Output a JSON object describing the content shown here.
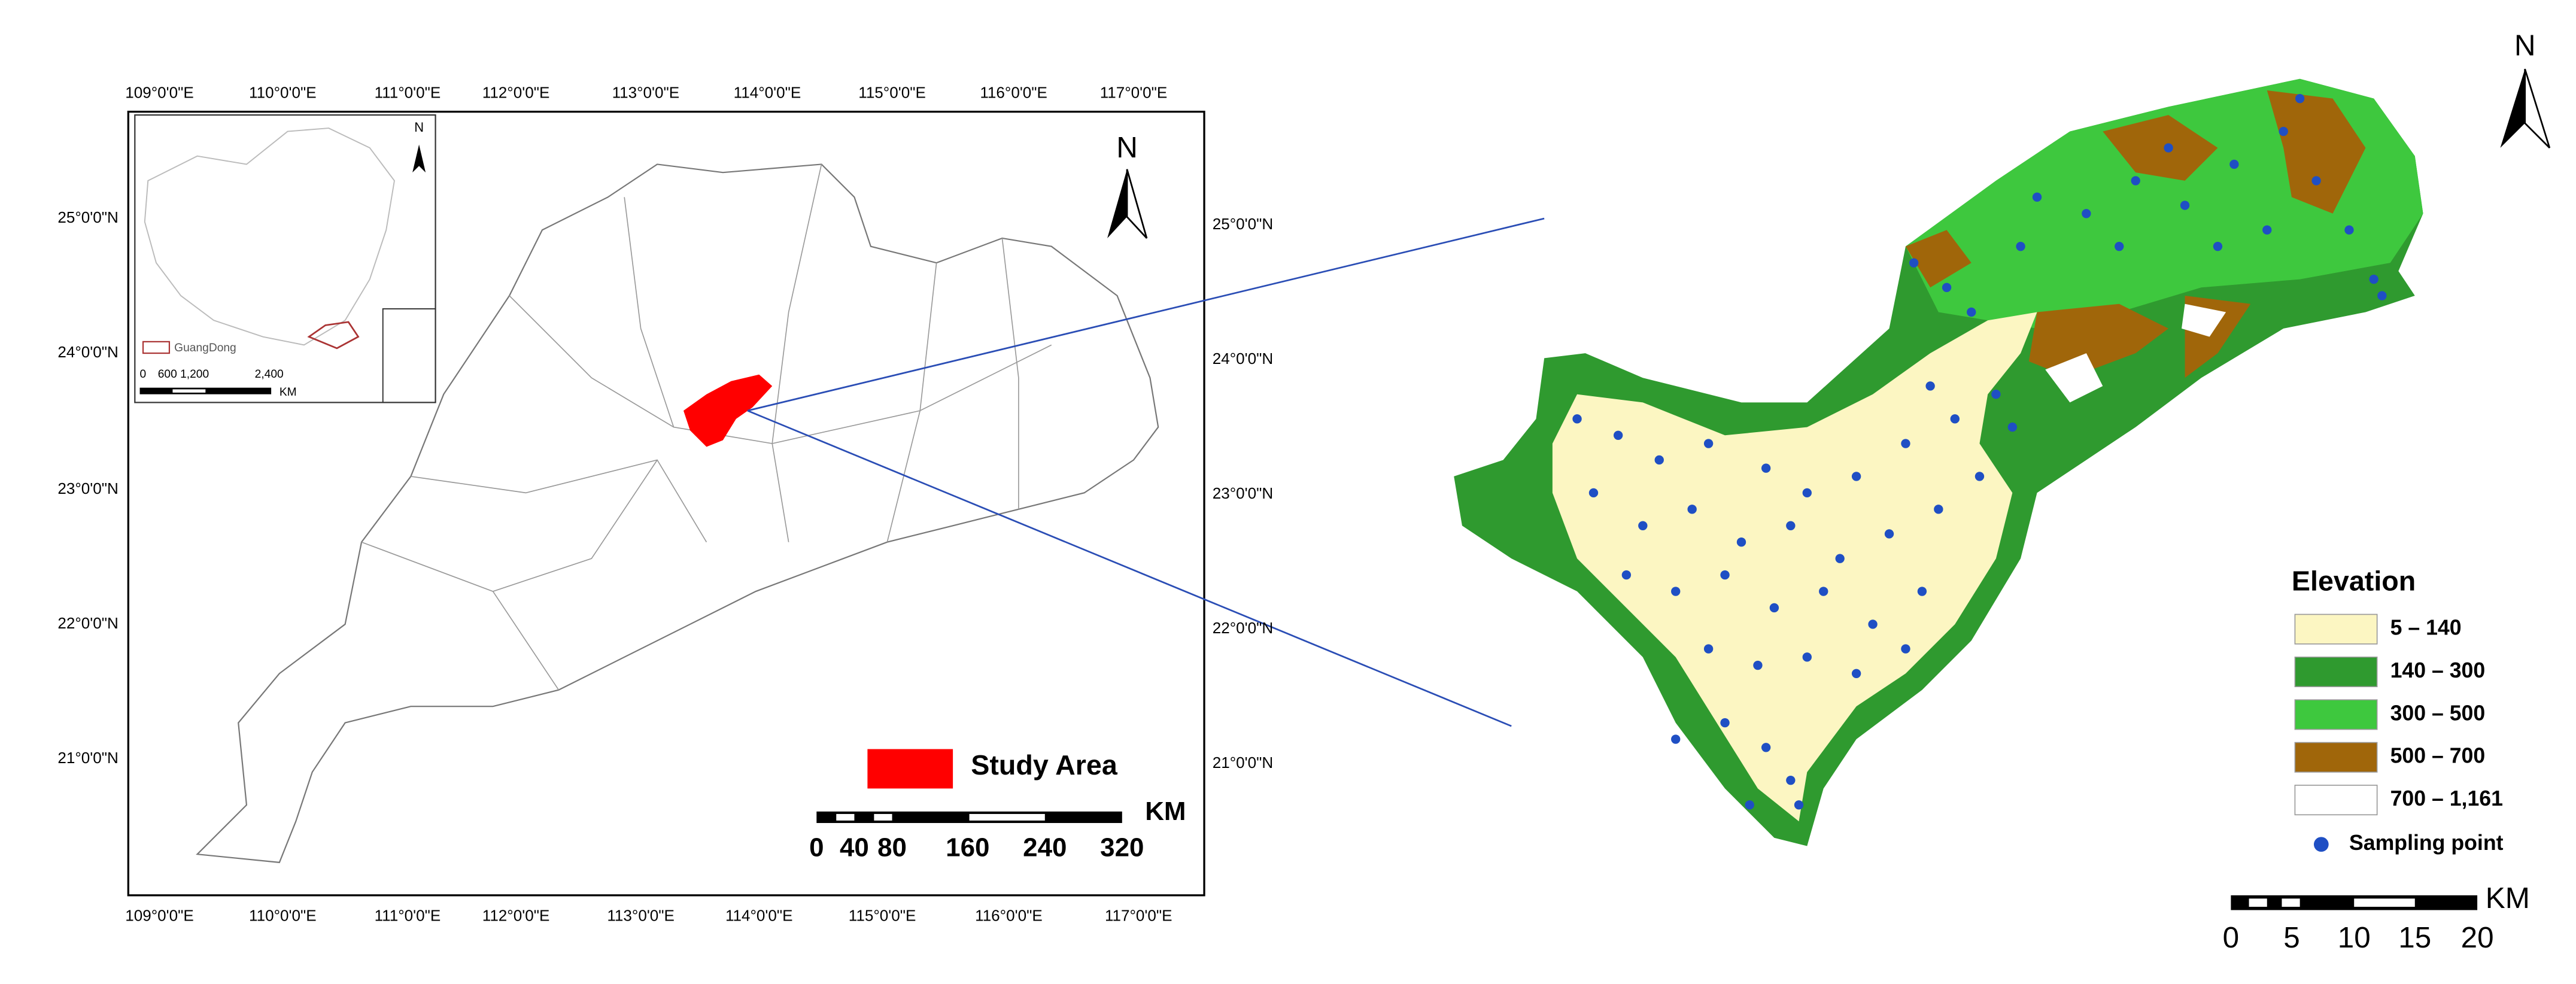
{
  "left_map": {
    "top_longitudes": [
      "109°0'0\"E",
      "110°0'0\"E",
      "111°0'0\"E",
      "112°0'0\"E",
      "113°0'0\"E",
      "114°0'0\"E",
      "115°0'0\"E",
      "116°0'0\"E",
      "117°0'0\"E"
    ],
    "bottom_longitudes": [
      "109°0'0\"E",
      "110°0'0\"E",
      "111°0'0\"E",
      "112°0'0\"E",
      "113°0'0\"E",
      "114°0'0\"E",
      "115°0'0\"E",
      "116°0'0\"E",
      "117°0'0\"E"
    ],
    "left_latitudes": [
      "25°0'0\"N",
      "24°0'0\"N",
      "23°0'0\"N",
      "22°0'0\"N",
      "21°0'0\"N"
    ],
    "right_latitudes": [
      "25°0'0\"N",
      "24°0'0\"N",
      "23°0'0\"N",
      "22°0'0\"N",
      "21°0'0\"N"
    ],
    "north": "N",
    "legend": "Study Area",
    "legend_color": "#ff0000",
    "scale_unit": "KM",
    "scale_labels": [
      "0",
      "40",
      "80",
      "160",
      "240",
      "320"
    ],
    "inset": {
      "north": "N",
      "legend": "GuangDong",
      "scale_labels": [
        "0",
        "600 1,200",
        "2,400"
      ],
      "scale_unit": "KM"
    }
  },
  "right_map": {
    "north": "N",
    "legend_title": "Elevation",
    "classes": [
      {
        "label": "5 – 140",
        "color": "#fcf6c2"
      },
      {
        "label": "140 – 300",
        "color": "#2f9a2f"
      },
      {
        "label": "300 – 500",
        "color": "#3ec83e"
      },
      {
        "label": "500 – 700",
        "color": "#a0660a"
      },
      {
        "label": "700 – 1,161",
        "color": "#ffffff"
      }
    ],
    "sampling_point": "Sampling point",
    "point_color": "#1f4fc4",
    "scale_labels": [
      "0",
      "5",
      "10",
      "15",
      "20"
    ],
    "scale_unit": "KM"
  }
}
